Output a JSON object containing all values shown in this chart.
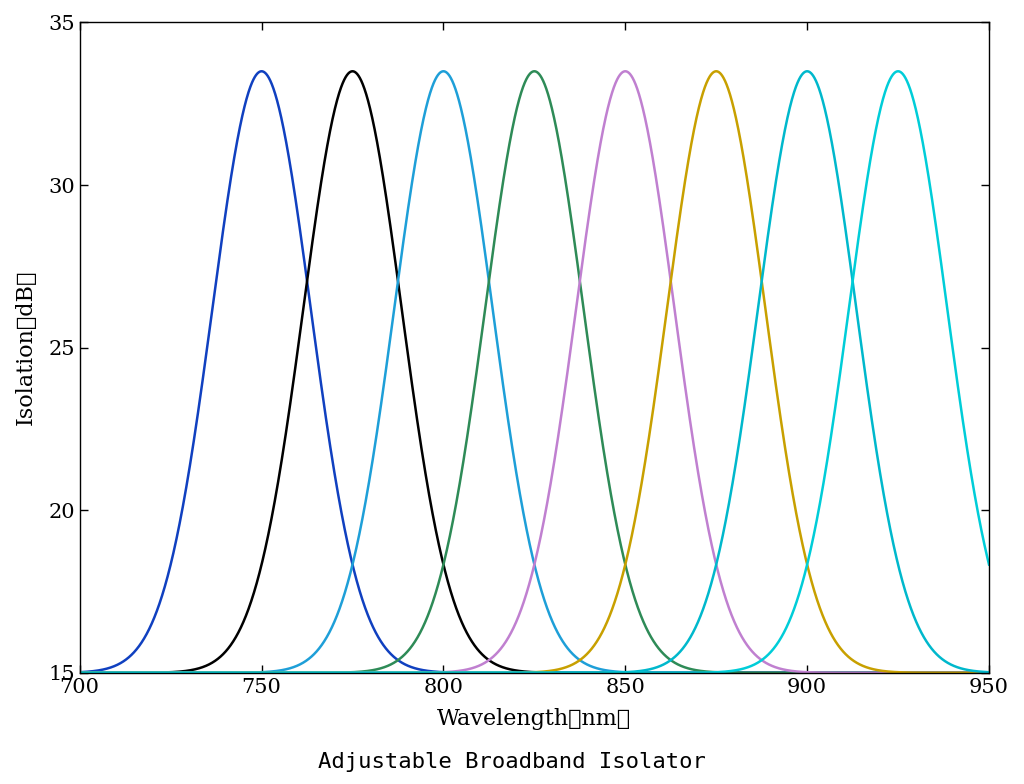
{
  "title": "Adjustable Broadband Isolator",
  "xlabel": "Wavelength（nm）",
  "ylabel": "Isolation（dB）",
  "xlim": [
    700,
    950
  ],
  "ylim": [
    15,
    35
  ],
  "xticks": [
    700,
    750,
    800,
    850,
    900,
    950
  ],
  "yticks": [
    15,
    20,
    25,
    30,
    35
  ],
  "peaks": [
    750,
    775,
    800,
    825,
    850,
    875,
    900,
    925
  ],
  "peak_value": 33.5,
  "floor_value": 15.0,
  "sigma": 13.5,
  "colors": [
    "#1040C0",
    "#000000",
    "#1E9FD8",
    "#2E8B57",
    "#C080D0",
    "#C8A000",
    "#00B8CC",
    "#00CDD8"
  ],
  "linewidth": 1.8,
  "background": "#ffffff",
  "title_fontsize": 16,
  "label_fontsize": 16,
  "tick_fontsize": 15
}
